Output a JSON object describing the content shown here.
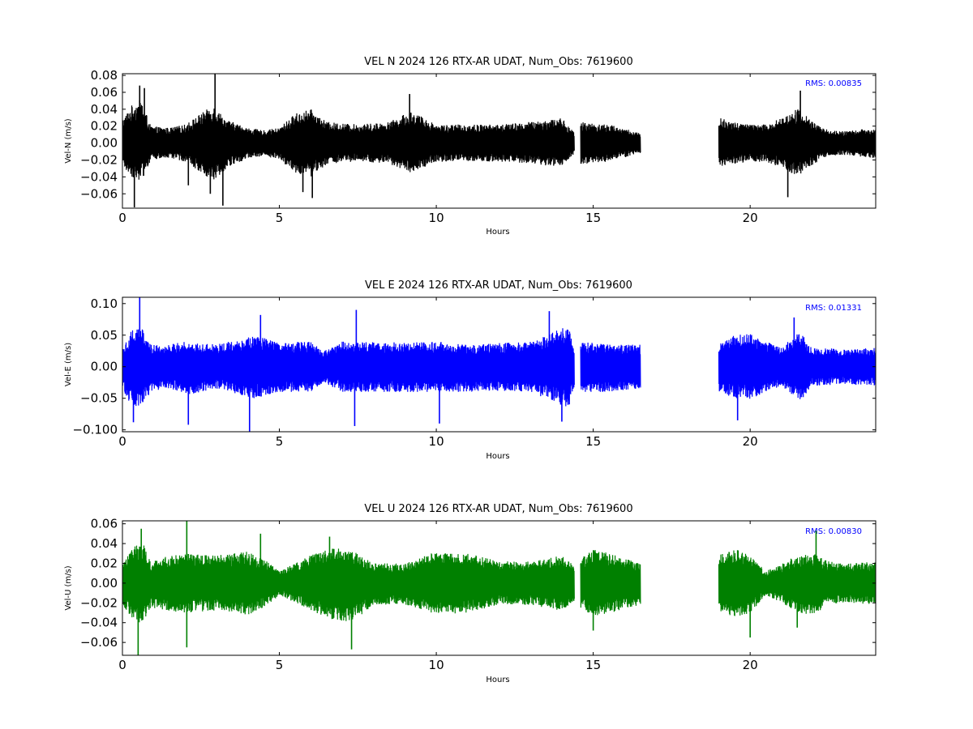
{
  "chart_data": [
    {
      "type": "line",
      "title": "VEL N 2024 126 RTX-AR  UDAT, Num_Obs: 7619600",
      "xlabel": "Hours",
      "ylabel": "Vel-N (m/s)",
      "xlim": [
        0,
        24
      ],
      "ylim": [
        -0.077,
        0.082
      ],
      "x_ticks": [
        0,
        5,
        10,
        15,
        20
      ],
      "y_ticks": [
        -0.06,
        -0.04,
        -0.02,
        0.0,
        0.02,
        0.04,
        0.06,
        0.08
      ],
      "y_tick_labels": [
        "−0.06",
        "−0.04",
        "−0.02",
        "0.00",
        "0.02",
        "0.04",
        "0.06",
        "0.08"
      ],
      "annotation": "RMS:  0.00835",
      "rms": 0.00835,
      "color": "#000000",
      "data_segments": [
        [
          0,
          14.4
        ],
        [
          14.6,
          16.5
        ],
        [
          19.0,
          24.0
        ]
      ],
      "envelope": {
        "x": [
          0,
          0.3,
          0.6,
          0.9,
          1.5,
          2.0,
          2.5,
          2.9,
          3.3,
          4.0,
          4.5,
          5.0,
          5.5,
          6.0,
          6.5,
          7.5,
          8.5,
          9.2,
          10.0,
          11.0,
          12.0,
          13.0,
          14.0,
          14.4,
          14.6,
          15.5,
          16.5,
          19.0,
          19.5,
          20.0,
          20.5,
          21.0,
          21.5,
          22.0,
          22.5,
          23.0,
          24.0
        ],
        "upper": [
          0.028,
          0.045,
          0.052,
          0.02,
          0.018,
          0.022,
          0.035,
          0.045,
          0.028,
          0.018,
          0.015,
          0.018,
          0.035,
          0.04,
          0.025,
          0.022,
          0.025,
          0.038,
          0.022,
          0.022,
          0.022,
          0.025,
          0.03,
          0.012,
          0.025,
          0.022,
          0.012,
          0.03,
          0.025,
          0.022,
          0.022,
          0.03,
          0.042,
          0.025,
          0.015,
          0.014,
          0.018
        ],
        "lower": [
          -0.028,
          -0.04,
          -0.045,
          -0.02,
          -0.018,
          -0.022,
          -0.035,
          -0.045,
          -0.03,
          -0.018,
          -0.015,
          -0.02,
          -0.035,
          -0.04,
          -0.025,
          -0.022,
          -0.025,
          -0.035,
          -0.022,
          -0.022,
          -0.022,
          -0.025,
          -0.028,
          -0.012,
          -0.025,
          -0.022,
          -0.012,
          -0.028,
          -0.025,
          -0.022,
          -0.022,
          -0.03,
          -0.04,
          -0.025,
          -0.015,
          -0.014,
          -0.018
        ]
      },
      "spikes": [
        {
          "x": 0.38,
          "y": -0.076
        },
        {
          "x": 0.55,
          "y": 0.068
        },
        {
          "x": 0.7,
          "y": 0.065
        },
        {
          "x": 2.1,
          "y": -0.05
        },
        {
          "x": 2.95,
          "y": 0.082
        },
        {
          "x": 3.2,
          "y": -0.074
        },
        {
          "x": 2.8,
          "y": -0.06
        },
        {
          "x": 6.05,
          "y": -0.065
        },
        {
          "x": 5.75,
          "y": -0.058
        },
        {
          "x": 9.15,
          "y": 0.058
        },
        {
          "x": 21.2,
          "y": -0.064
        },
        {
          "x": 21.6,
          "y": 0.062
        }
      ]
    },
    {
      "type": "line",
      "title": "VEL E 2024 126 RTX-AR  UDAT, Num_Obs: 7619600",
      "xlabel": "Hours",
      "ylabel": "Vel-E (m/s)",
      "xlim": [
        0,
        24
      ],
      "ylim": [
        -0.103,
        0.11
      ],
      "x_ticks": [
        0,
        5,
        10,
        15,
        20
      ],
      "y_ticks": [
        -0.1,
        -0.05,
        0.0,
        0.05,
        0.1
      ],
      "y_tick_labels": [
        "−0.100",
        "−0.05",
        "0.00",
        "0.05",
        "0.10"
      ],
      "annotation": "RMS:  0.01331",
      "rms": 0.01331,
      "color": "#0000ff",
      "data_segments": [
        [
          0,
          14.4
        ],
        [
          14.6,
          16.5
        ],
        [
          19.0,
          24.0
        ]
      ],
      "envelope": {
        "x": [
          0,
          0.3,
          0.6,
          0.9,
          1.5,
          2.0,
          3.0,
          3.8,
          4.2,
          4.6,
          5.0,
          6.0,
          6.4,
          7.0,
          8.0,
          9.0,
          10.0,
          11.0,
          12.0,
          13.0,
          13.7,
          14.2,
          14.4,
          14.6,
          15.5,
          16.5,
          19.0,
          19.5,
          20.0,
          20.5,
          21.0,
          21.3,
          21.6,
          22.0,
          23.0,
          24.0
        ],
        "upper": [
          0.03,
          0.06,
          0.065,
          0.035,
          0.035,
          0.04,
          0.035,
          0.045,
          0.05,
          0.045,
          0.038,
          0.04,
          0.025,
          0.04,
          0.04,
          0.038,
          0.04,
          0.035,
          0.038,
          0.04,
          0.055,
          0.065,
          0.03,
          0.04,
          0.035,
          0.035,
          0.035,
          0.05,
          0.052,
          0.04,
          0.03,
          0.045,
          0.055,
          0.03,
          0.028,
          0.03
        ],
        "lower": [
          -0.035,
          -0.065,
          -0.06,
          -0.04,
          -0.035,
          -0.045,
          -0.035,
          -0.045,
          -0.05,
          -0.045,
          -0.04,
          -0.04,
          -0.025,
          -0.04,
          -0.04,
          -0.04,
          -0.04,
          -0.04,
          -0.038,
          -0.04,
          -0.055,
          -0.065,
          -0.035,
          -0.04,
          -0.04,
          -0.035,
          -0.04,
          -0.05,
          -0.052,
          -0.04,
          -0.03,
          -0.045,
          -0.055,
          -0.03,
          -0.028,
          -0.03
        ]
      },
      "spikes": [
        {
          "x": 0.55,
          "y": 0.11
        },
        {
          "x": 0.35,
          "y": -0.088
        },
        {
          "x": 2.1,
          "y": -0.092
        },
        {
          "x": 4.05,
          "y": -0.103
        },
        {
          "x": 4.4,
          "y": 0.082
        },
        {
          "x": 7.45,
          "y": 0.09
        },
        {
          "x": 7.4,
          "y": -0.094
        },
        {
          "x": 10.1,
          "y": -0.09
        },
        {
          "x": 13.6,
          "y": 0.088
        },
        {
          "x": 14.0,
          "y": -0.087
        },
        {
          "x": 19.6,
          "y": -0.085
        },
        {
          "x": 21.4,
          "y": 0.078
        }
      ]
    },
    {
      "type": "line",
      "title": "VEL U 2024 126 RTX-AR  UDAT, Num_Obs: 7619600",
      "xlabel": "Hours",
      "ylabel": "Vel-U (m/s)",
      "xlim": [
        0,
        24
      ],
      "ylim": [
        -0.073,
        0.063
      ],
      "x_ticks": [
        0,
        5,
        10,
        15,
        20
      ],
      "y_ticks": [
        -0.06,
        -0.04,
        -0.02,
        0.0,
        0.02,
        0.04,
        0.06
      ],
      "y_tick_labels": [
        "−0.06",
        "−0.04",
        "−0.02",
        "0.00",
        "0.02",
        "0.04",
        "0.06"
      ],
      "annotation": "RMS:  0.00830",
      "rms": 0.0083,
      "color": "#008000",
      "data_segments": [
        [
          0,
          14.4
        ],
        [
          14.6,
          16.5
        ],
        [
          19.0,
          24.0
        ]
      ],
      "envelope": {
        "x": [
          0,
          0.3,
          0.6,
          0.9,
          1.5,
          2.0,
          3.0,
          4.0,
          4.5,
          5.0,
          6.0,
          6.5,
          7.0,
          7.5,
          8.0,
          9.0,
          10.0,
          11.0,
          12.0,
          13.0,
          14.0,
          14.4,
          14.6,
          15.0,
          16.5,
          19.0,
          19.5,
          20.0,
          20.5,
          21.0,
          21.5,
          22.0,
          22.5,
          23.0,
          24.0
        ],
        "upper": [
          0.02,
          0.035,
          0.045,
          0.022,
          0.028,
          0.03,
          0.028,
          0.032,
          0.025,
          0.012,
          0.028,
          0.035,
          0.035,
          0.03,
          0.02,
          0.02,
          0.032,
          0.03,
          0.022,
          0.022,
          0.028,
          0.018,
          0.025,
          0.035,
          0.02,
          0.028,
          0.035,
          0.028,
          0.012,
          0.02,
          0.028,
          0.03,
          0.022,
          0.02,
          0.022
        ],
        "lower": [
          -0.022,
          -0.035,
          -0.042,
          -0.025,
          -0.028,
          -0.03,
          -0.028,
          -0.032,
          -0.025,
          -0.012,
          -0.028,
          -0.035,
          -0.04,
          -0.035,
          -0.022,
          -0.022,
          -0.032,
          -0.03,
          -0.022,
          -0.022,
          -0.028,
          -0.018,
          -0.025,
          -0.035,
          -0.022,
          -0.028,
          -0.035,
          -0.03,
          -0.012,
          -0.02,
          -0.03,
          -0.032,
          -0.022,
          -0.02,
          -0.022
        ]
      },
      "spikes": [
        {
          "x": 0.5,
          "y": -0.073
        },
        {
          "x": 0.6,
          "y": 0.055
        },
        {
          "x": 2.05,
          "y": 0.063
        },
        {
          "x": 2.05,
          "y": -0.065
        },
        {
          "x": 4.4,
          "y": 0.05
        },
        {
          "x": 7.3,
          "y": -0.067
        },
        {
          "x": 6.6,
          "y": 0.047
        },
        {
          "x": 15.0,
          "y": -0.048
        },
        {
          "x": 20.0,
          "y": -0.055
        },
        {
          "x": 22.1,
          "y": 0.053
        },
        {
          "x": 21.5,
          "y": -0.045
        }
      ]
    }
  ]
}
